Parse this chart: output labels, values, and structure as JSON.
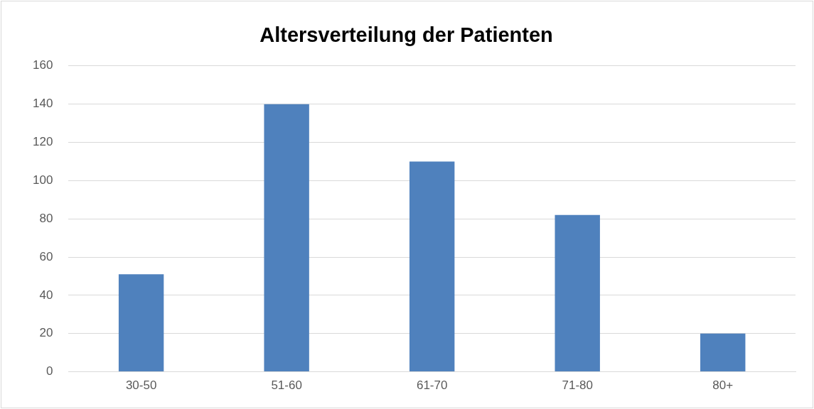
{
  "chart_data": {
    "type": "bar",
    "title": "Altersverteilung der Patienten",
    "categories": [
      "30-50",
      "51-60",
      "61-70",
      "71-80",
      "80+"
    ],
    "values": [
      51,
      140,
      110,
      82,
      20
    ],
    "color": "#4f81bd",
    "ylim": [
      0,
      160
    ],
    "yticks": [
      0,
      20,
      40,
      60,
      80,
      100,
      120,
      140,
      160
    ],
    "grid": "y",
    "legend": false
  }
}
